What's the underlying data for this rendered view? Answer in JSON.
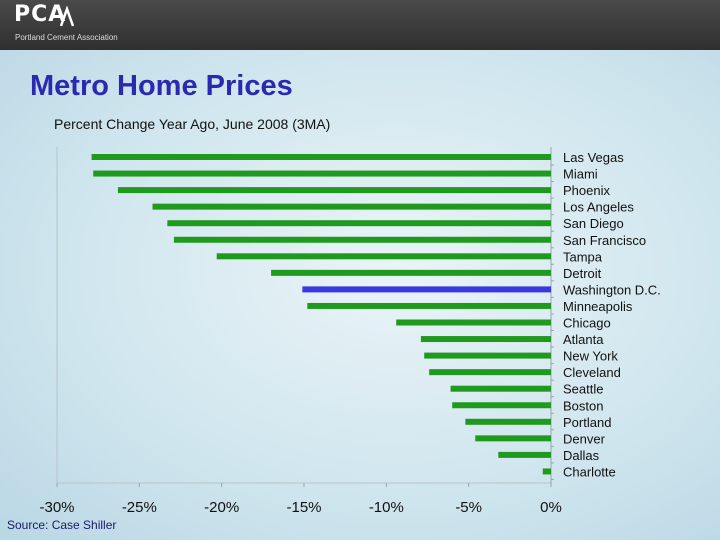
{
  "header": {
    "logo": "PCA",
    "logo_subtitle": "Portland Cement Association"
  },
  "title": "Metro Home Prices",
  "subtitle": "Percent Change Year Ago, June 2008 (3MA)",
  "source": "Source: Case Shiller",
  "colors": {
    "bar": "#1f9a1f",
    "highlight": "#3838e0",
    "title": "#2a2ab0"
  },
  "chart_data": {
    "type": "bar",
    "orientation": "horizontal",
    "categories": [
      "Las Vegas",
      "Miami",
      "Phoenix",
      "Los Angeles",
      "San Diego",
      "San Francisco",
      "Tampa",
      "Detroit",
      "Washington D.C.",
      "Minneapolis",
      "Chicago",
      "Atlanta",
      "New York",
      "Cleveland",
      "Seattle",
      "Boston",
      "Portland",
      "Denver",
      "Dallas",
      "Charlotte"
    ],
    "values": [
      -27.9,
      -27.8,
      -26.3,
      -24.2,
      -23.3,
      -22.9,
      -20.3,
      -17.0,
      -15.1,
      -14.8,
      -9.4,
      -7.9,
      -7.7,
      -7.4,
      -6.1,
      -6.0,
      -5.2,
      -4.6,
      -3.2,
      -0.5
    ],
    "highlight": "Washington D.C.",
    "xlim": [
      -30,
      0
    ],
    "xticks": [
      "-30%",
      "-25%",
      "-20%",
      "-15%",
      "-10%",
      "-5%",
      "0%"
    ],
    "grid": false,
    "legend": "none"
  }
}
